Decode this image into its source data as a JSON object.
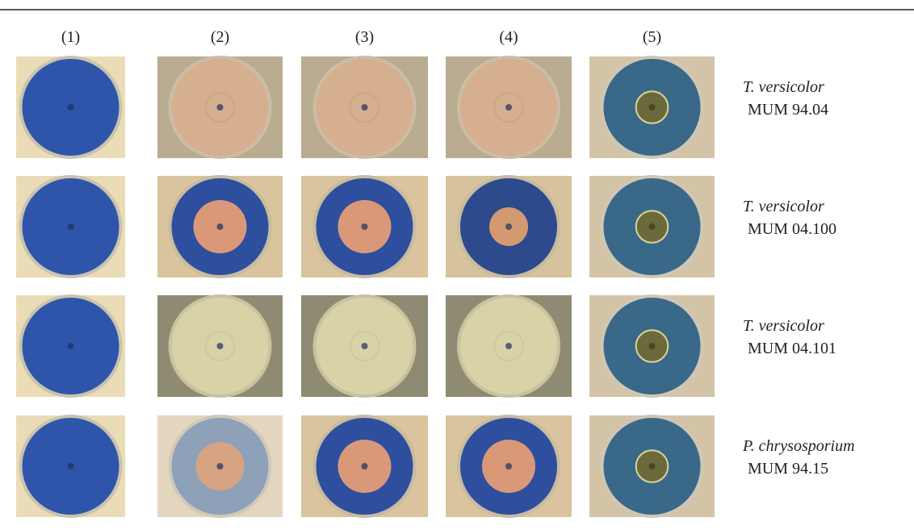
{
  "columns": [
    "(1)",
    "(2)",
    "(3)",
    "(4)",
    "(5)"
  ],
  "rows": [
    {
      "species": "T. versicolor",
      "strain": "MUM 94.04"
    },
    {
      "species": "T. versicolor",
      "strain": "MUM 04.100"
    },
    {
      "species": "T. versicolor",
      "strain": "MUM 04.101"
    },
    {
      "species": "P. chrysosporium",
      "strain": "MUM 94.15"
    }
  ]
}
